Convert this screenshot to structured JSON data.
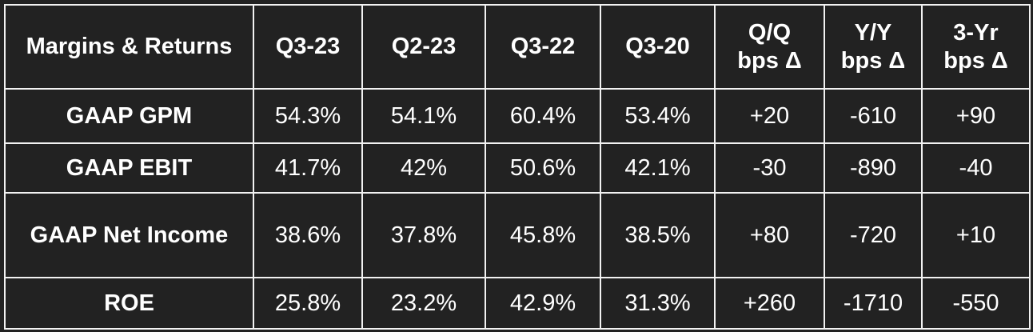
{
  "table": {
    "header": [
      "Margins & Returns",
      "Q3-23",
      "Q2-23",
      "Q3-22",
      "Q3-20",
      "Q/Q bps Δ",
      "Y/Y bps Δ",
      "3-Yr bps Δ"
    ],
    "rows": [
      [
        "GAAP GPM",
        "54.3%",
        "54.1%",
        "60.4%",
        "53.4%",
        "+20",
        "-610",
        "+90"
      ],
      [
        "GAAP EBIT",
        "41.7%",
        "42%",
        "50.6%",
        "42.1%",
        "-30",
        "-890",
        "-40"
      ],
      [
        "GAAP Net Income",
        "38.6%",
        "37.8%",
        "45.8%",
        "38.5%",
        "+80",
        "-720",
        "+10"
      ],
      [
        "ROE",
        "25.8%",
        "23.2%",
        "42.9%",
        "31.3%",
        "+260",
        "-1710",
        "-550"
      ]
    ]
  }
}
